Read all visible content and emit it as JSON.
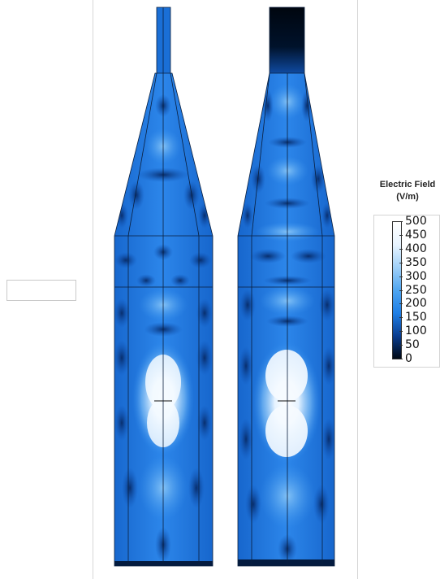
{
  "legend": {
    "title_line1": "Electric Field",
    "title_line2": "(V/m)",
    "ticks": [
      "500",
      "450",
      "400",
      "350",
      "300",
      "250",
      "200",
      "150",
      "100",
      "50",
      "0"
    ],
    "range": [
      0,
      500
    ],
    "colormap": [
      "#000814",
      "#0a3d8f",
      "#1f7fe6",
      "#4fa5f0",
      "#9fd0f8",
      "#e8f4ff",
      "#ffffff"
    ]
  }
}
